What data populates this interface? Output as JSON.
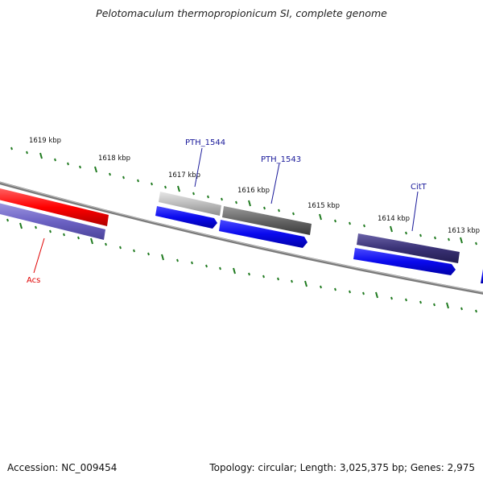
{
  "header": {
    "title": "Pelotomaculum thermopropionicum SI, complete genome"
  },
  "footer": {
    "accession": "Accession: NC_009454",
    "topology": "Topology: circular; Length: 3,025,375 bp; Genes: 2,975"
  },
  "scale": {
    "kbp_labels": [
      "1619 kbp",
      "1618 kbp",
      "1617 kbp",
      "1616 kbp",
      "1615 kbp",
      "1614 kbp",
      "1613 kbp"
    ]
  },
  "genes": [
    {
      "name": "PTH_1544",
      "label_color": "#1a1a9a"
    },
    {
      "name": "PTH_1543",
      "label_color": "#1a1a9a"
    },
    {
      "name": "CitT",
      "label_color": "#1a1a9a"
    },
    {
      "name": "Acs",
      "label_color": "#e00000"
    }
  ],
  "colors": {
    "backbone": "#7a7a7a",
    "tick": "#1f7a1f",
    "cds": "#1010e8",
    "acs": "#ff1010",
    "acs_lower": "#7468c8",
    "pth1544": "#bdbdbd",
    "pth1543": "#6e6e6e",
    "citt": "#3c3478"
  }
}
